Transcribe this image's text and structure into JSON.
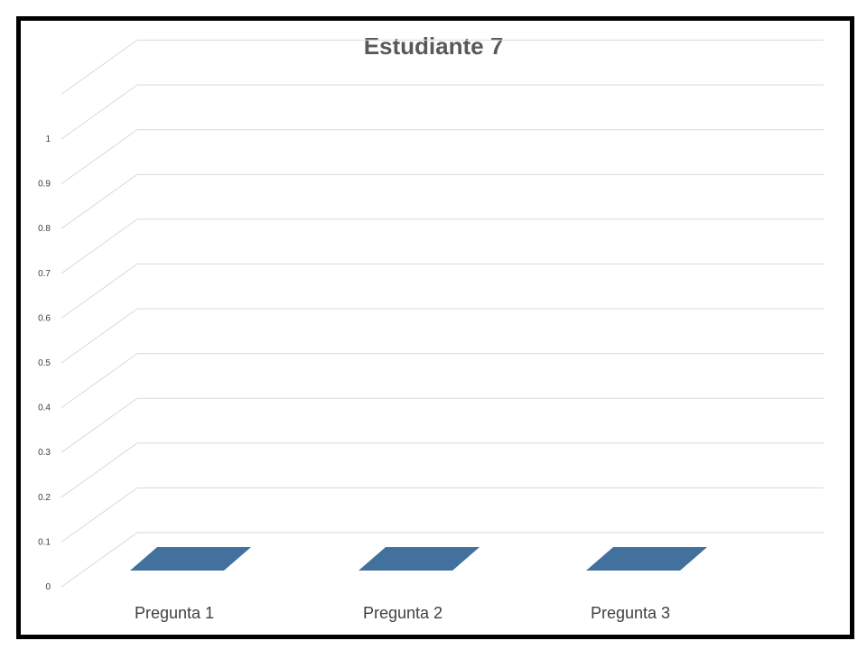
{
  "chart_data": {
    "type": "bar",
    "title": "Estudiante 7",
    "categories": [
      "Pregunta 1",
      "Pregunta 2",
      "Pregunta 3"
    ],
    "values": [
      0,
      0,
      0
    ],
    "ylim": [
      0,
      1.1
    ],
    "yticks": [
      "0",
      "0.1",
      "0.2",
      "0.3",
      "0.4",
      "0.5",
      "0.6",
      "0.7",
      "0.8",
      "0.9",
      "1"
    ],
    "grid": true,
    "legend": "none",
    "bar_color": "#41719C",
    "border_color": "#000000"
  }
}
